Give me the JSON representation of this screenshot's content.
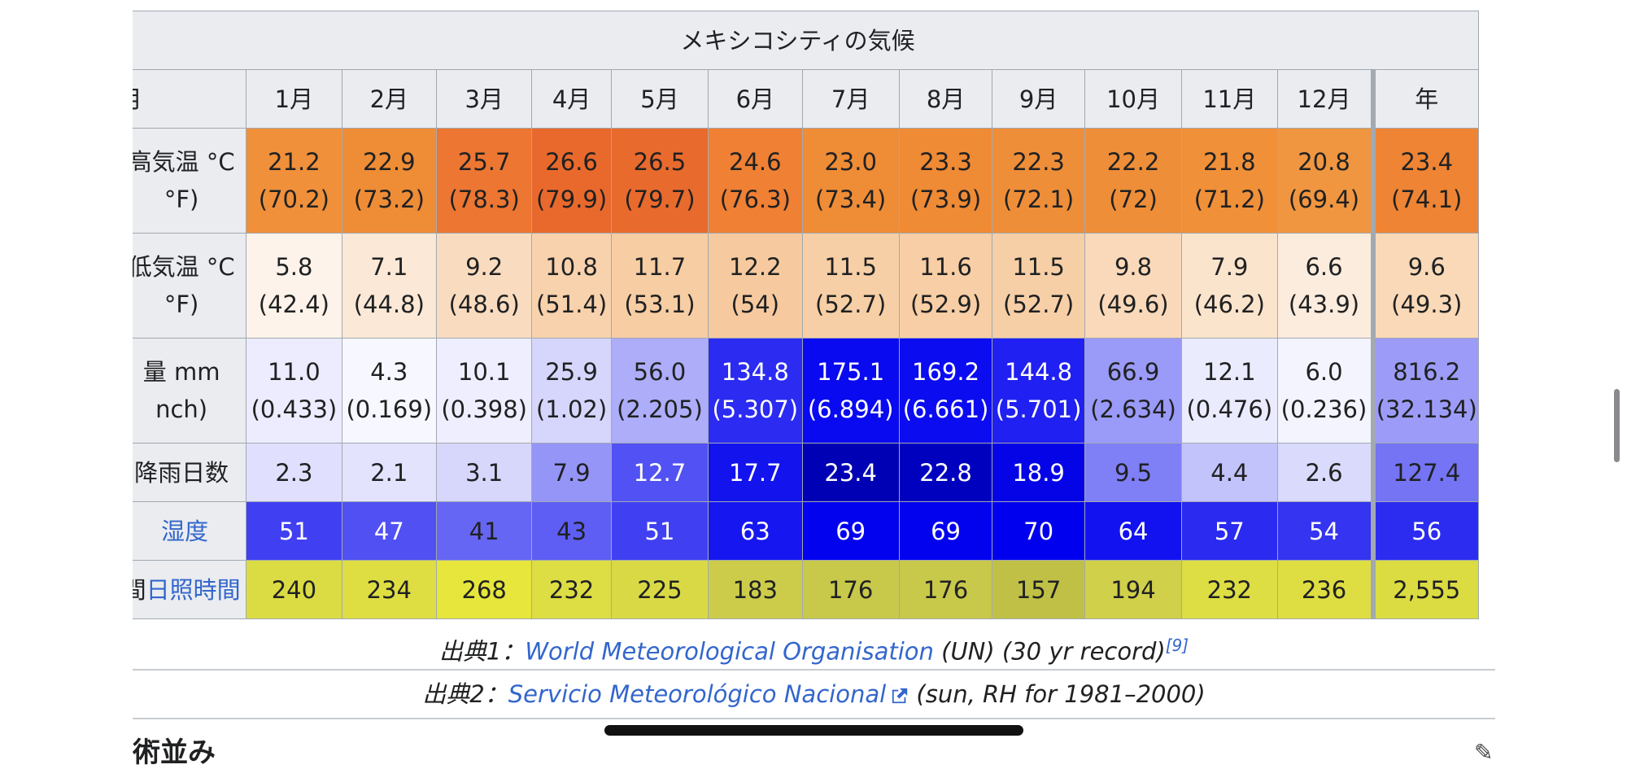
{
  "table": {
    "caption": "メキシコシティの気候",
    "month_header_label": "月",
    "months": [
      "1月",
      "2月",
      "3月",
      "4月",
      "5月",
      "6月",
      "7月",
      "8月",
      "9月",
      "10月",
      "11月",
      "12月"
    ],
    "year_label": "年",
    "rows": [
      {
        "label_line1": "高気温 °C",
        "label_line2": "°F)",
        "values": [
          {
            "c": "21.2",
            "f": "(70.2)"
          },
          {
            "c": "22.9",
            "f": "(73.2)"
          },
          {
            "c": "25.7",
            "f": "(78.3)"
          },
          {
            "c": "26.6",
            "f": "(79.9)"
          },
          {
            "c": "26.5",
            "f": "(79.7)"
          },
          {
            "c": "24.6",
            "f": "(76.3)"
          },
          {
            "c": "23.0",
            "f": "(73.4)"
          },
          {
            "c": "23.3",
            "f": "(73.9)"
          },
          {
            "c": "22.3",
            "f": "(72.1)"
          },
          {
            "c": "22.2",
            "f": "(72)"
          },
          {
            "c": "21.8",
            "f": "(71.2)"
          },
          {
            "c": "20.8",
            "f": "(69.4)"
          }
        ],
        "year": {
          "c": "23.4",
          "f": "(74.1)"
        },
        "colors": [
          "#f0903a",
          "#ef8c36",
          "#ec7632",
          "#e9692c",
          "#e96a2d",
          "#ef8034",
          "#ef8c36",
          "#ef8a35",
          "#ef8e38",
          "#ef8e38",
          "#f09039",
          "#f09640"
        ],
        "year_color": "#ee8434"
      },
      {
        "label_line1": "低気温 °C",
        "label_line2": "°F)",
        "values": [
          {
            "c": "5.8",
            "f": "(42.4)"
          },
          {
            "c": "7.1",
            "f": "(44.8)"
          },
          {
            "c": "9.2",
            "f": "(48.6)"
          },
          {
            "c": "10.8",
            "f": "(51.4)"
          },
          {
            "c": "11.7",
            "f": "(53.1)"
          },
          {
            "c": "12.2",
            "f": "(54)"
          },
          {
            "c": "11.5",
            "f": "(52.7)"
          },
          {
            "c": "11.6",
            "f": "(52.9)"
          },
          {
            "c": "11.5",
            "f": "(52.7)"
          },
          {
            "c": "9.8",
            "f": "(49.6)"
          },
          {
            "c": "7.9",
            "f": "(46.2)"
          },
          {
            "c": "6.6",
            "f": "(43.9)"
          }
        ],
        "year": {
          "c": "9.6",
          "f": "(49.3)"
        },
        "colors": [
          "#fdf3ea",
          "#fbe8d6",
          "#f9dcbf",
          "#f8d2ad",
          "#f7cda4",
          "#f6ca9e",
          "#f7cfa6",
          "#f7cea5",
          "#f7cfa6",
          "#f9d9b9",
          "#fbe4cc",
          "#fcecdd"
        ],
        "year_color": "#f9d9b8"
      },
      {
        "label_line1": "量 mm",
        "label_line2": "nch)",
        "values": [
          {
            "c": "11.0",
            "f": "(0.433)"
          },
          {
            "c": "4.3",
            "f": "(0.169)"
          },
          {
            "c": "10.1",
            "f": "(0.398)"
          },
          {
            "c": "25.9",
            "f": "(1.02)"
          },
          {
            "c": "56.0",
            "f": "(2.205)"
          },
          {
            "c": "134.8",
            "f": "(5.307)"
          },
          {
            "c": "175.1",
            "f": "(6.894)"
          },
          {
            "c": "169.2",
            "f": "(6.661)"
          },
          {
            "c": "144.8",
            "f": "(5.701)"
          },
          {
            "c": "66.9",
            "f": "(2.634)"
          },
          {
            "c": "12.1",
            "f": "(0.476)"
          },
          {
            "c": "6.0",
            "f": "(0.236)"
          }
        ],
        "year": {
          "c": "816.2",
          "f": "(32.134)"
        },
        "colors": [
          "#ececfe",
          "#f7f7ff",
          "#eeeefe",
          "#d6d6fc",
          "#adadf9",
          "#2b2bf2",
          "#0a0af0",
          "#0c0cf1",
          "#2020f2",
          "#9a9af8",
          "#ebebfe",
          "#f4f4ff"
        ],
        "year_color": "#9c9cf8"
      },
      {
        "label_line1": "降雨日数",
        "label_line2": "",
        "values": [
          {
            "c": "2.3"
          },
          {
            "c": "2.1"
          },
          {
            "c": "3.1"
          },
          {
            "c": "7.9"
          },
          {
            "c": "12.7"
          },
          {
            "c": "17.7"
          },
          {
            "c": "23.4"
          },
          {
            "c": "22.8"
          },
          {
            "c": "18.9"
          },
          {
            "c": "9.5"
          },
          {
            "c": "4.4"
          },
          {
            "c": "2.6"
          }
        ],
        "year": {
          "c": "127.4"
        },
        "colors": [
          "#e0e0fe",
          "#e3e3fe",
          "#d7d7fc",
          "#9595f8",
          "#5252f4",
          "#1313ee",
          "#0000b4",
          "#0000bf",
          "#0404e6",
          "#7f7ff6",
          "#c3c3fb",
          "#dadafc"
        ],
        "year_color": "#7474f4"
      },
      {
        "label_line1": "湿度",
        "label_line2": "",
        "values": [
          {
            "c": "51"
          },
          {
            "c": "47"
          },
          {
            "c": "41"
          },
          {
            "c": "43"
          },
          {
            "c": "51"
          },
          {
            "c": "63"
          },
          {
            "c": "69"
          },
          {
            "c": "69"
          },
          {
            "c": "70"
          },
          {
            "c": "64"
          },
          {
            "c": "57"
          },
          {
            "c": "54"
          }
        ],
        "year": {
          "c": "56"
        },
        "colors": [
          "#4040f2",
          "#5050f3",
          "#6666f4",
          "#5e5ef4",
          "#4040f2",
          "#1616f0",
          "#0202ef",
          "#0202ef",
          "#0000ee",
          "#1212f0",
          "#2a2af1",
          "#3434f1"
        ],
        "year_color": "#2c2cf1"
      },
      {
        "label_line1": "間",
        "label_line1_link": "日照時間",
        "label_line2": "",
        "values": [
          {
            "c": "240"
          },
          {
            "c": "234"
          },
          {
            "c": "268"
          },
          {
            "c": "232"
          },
          {
            "c": "225"
          },
          {
            "c": "183"
          },
          {
            "c": "176"
          },
          {
            "c": "176"
          },
          {
            "c": "157"
          },
          {
            "c": "194"
          },
          {
            "c": "232"
          },
          {
            "c": "236"
          }
        ],
        "year": {
          "c": "2,555"
        },
        "colors": [
          "#dbdb44",
          "#dede43",
          "#e6e63c",
          "#dddd44",
          "#d9d946",
          "#cccc4a",
          "#c8c84a",
          "#c8c84a",
          "#c0c046",
          "#d0d04a",
          "#dddd44",
          "#dede43"
        ],
        "year_color": "#dbdb42"
      }
    ]
  },
  "sources": [
    {
      "prefix": "出典1：",
      "link": "World Meteorological Organisation",
      "suffix": " (UN) (30 yr record)",
      "ref": "[9]"
    },
    {
      "prefix": "出典2：",
      "link": "Servicio Meteorológico Nacional",
      "suffix": " (sun, RH for 1981–2000)"
    }
  ],
  "next_heading": "術並み",
  "colors": {
    "link": "#3366cc",
    "header_bg": "#eaecf0",
    "border": "#a2a9b1"
  }
}
